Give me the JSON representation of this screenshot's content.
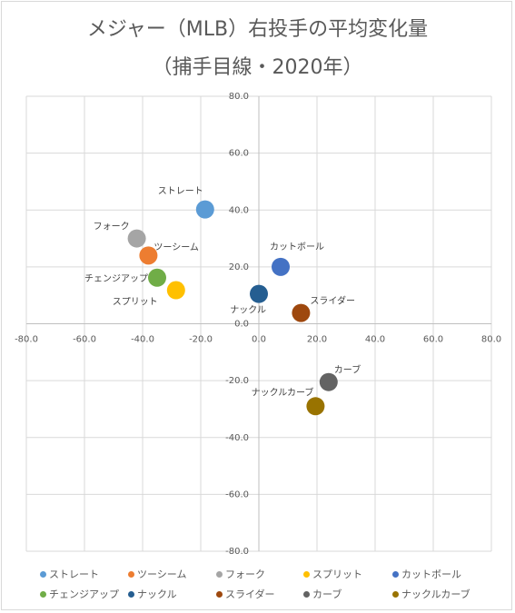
{
  "chart_data": {
    "type": "scatter",
    "title": "メジャー（MLB）右投手の平均変化量",
    "subtitle": "（捕手目線・2020年）",
    "xlim": [
      -80,
      80
    ],
    "ylim": [
      -80,
      80
    ],
    "x_ticks": [
      "-80.0",
      "-60.0",
      "-40.0",
      "-20.0",
      "0.0",
      "20.0",
      "40.0",
      "60.0",
      "80.0"
    ],
    "y_ticks": [
      "80.0",
      "60.0",
      "40.0",
      "20.0",
      "0.0",
      "-20.0",
      "-40.0",
      "-60.0",
      "-80.0"
    ],
    "grid": true,
    "legend_position": "bottom",
    "series": [
      {
        "name": "ストレート",
        "x": -18.5,
        "y": 40.2,
        "color": "#5b9bd5"
      },
      {
        "name": "ツーシーム",
        "x": -38.0,
        "y": 24.0,
        "color": "#ed7d31"
      },
      {
        "name": "フォーク",
        "x": -42.0,
        "y": 30.0,
        "color": "#a5a5a5"
      },
      {
        "name": "スプリット",
        "x": -28.5,
        "y": 11.8,
        "color": "#ffc000"
      },
      {
        "name": "カットボール",
        "x": 7.5,
        "y": 20.0,
        "color": "#4472c4"
      },
      {
        "name": "チェンジアップ",
        "x": -35.0,
        "y": 16.2,
        "color": "#70ad47"
      },
      {
        "name": "ナックル",
        "x": 0.0,
        "y": 10.5,
        "color": "#255e91"
      },
      {
        "name": "スライダー",
        "x": 14.5,
        "y": 3.8,
        "color": "#9e480e"
      },
      {
        "name": "カーブ",
        "x": 24.0,
        "y": -20.5,
        "color": "#636363"
      },
      {
        "name": "ナックルカーブ",
        "x": 19.5,
        "y": -29.0,
        "color": "#997300"
      }
    ]
  }
}
